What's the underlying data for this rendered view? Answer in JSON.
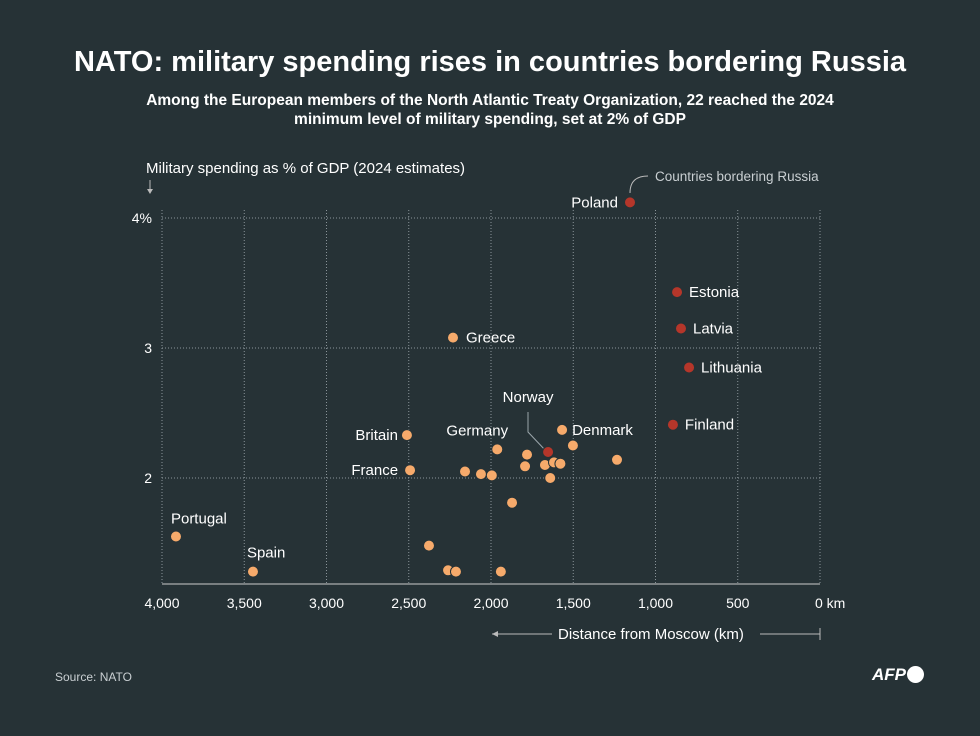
{
  "title": "NATO: military spending rises in countries bordering Russia",
  "subtitle": "Among the European members of the North Atlantic Treaty Organization, 22 reached the 2024 minimum level of military spending, set at 2% of GDP",
  "source": "Source: NATO",
  "logo": "AFP",
  "colors": {
    "background": "#263236",
    "other": "#f6aa6b",
    "bordering": "#b5362a"
  },
  "chart_data": {
    "type": "scatter",
    "ylabel": "Military spending as % of GDP (2024 estimates)",
    "xlabel": "Distance from Moscow (km)",
    "xlim": [
      4000,
      0
    ],
    "ylim": [
      1.18,
      4
    ],
    "x_reversed": true,
    "grid": true,
    "xticks": [
      4000,
      3500,
      3000,
      2500,
      2000,
      1500,
      1000,
      500,
      0
    ],
    "xtick_labels": [
      "4,000",
      "3,500",
      "3,000",
      "2,500",
      "2,000",
      "1,500",
      "1,000",
      "500",
      "0 km"
    ],
    "yticks": [
      4,
      3,
      2
    ],
    "ytick_labels": [
      "4%",
      "3",
      "2"
    ],
    "legend": "Countries bordering Russia",
    "points": [
      {
        "label": "Poland",
        "x": 1155,
        "y": 4.12,
        "bordering": true
      },
      {
        "label": "Estonia",
        "x": 869,
        "y": 3.43,
        "bordering": true
      },
      {
        "label": "Latvia",
        "x": 845,
        "y": 3.15,
        "bordering": true
      },
      {
        "label": "Lithuania",
        "x": 796,
        "y": 2.85,
        "bordering": true
      },
      {
        "label": "Finland",
        "x": 894,
        "y": 2.41,
        "bordering": true
      },
      {
        "label": "Norway",
        "x": 1653,
        "y": 2.2,
        "bordering": true
      },
      {
        "label": "Greece",
        "x": 2231,
        "y": 3.08,
        "bordering": false
      },
      {
        "label": "Britain",
        "x": 2511,
        "y": 2.33,
        "bordering": false
      },
      {
        "label": "France",
        "x": 2492,
        "y": 2.06,
        "bordering": false
      },
      {
        "label": "Germany",
        "x": 1962,
        "y": 2.22,
        "bordering": false
      },
      {
        "label": "Denmark",
        "x": 1568,
        "y": 2.37,
        "bordering": false
      },
      {
        "label": "Portugal",
        "x": 3915,
        "y": 1.55,
        "bordering": false
      },
      {
        "label": "Spain",
        "x": 3447,
        "y": 1.28,
        "bordering": false
      },
      {
        "label": "",
        "x": 1502,
        "y": 2.25,
        "bordering": false
      },
      {
        "label": "",
        "x": 1234,
        "y": 2.14,
        "bordering": false
      },
      {
        "label": "",
        "x": 1781,
        "y": 2.18,
        "bordering": false
      },
      {
        "label": "",
        "x": 1793,
        "y": 2.09,
        "bordering": false
      },
      {
        "label": "",
        "x": 1672,
        "y": 2.1,
        "bordering": false
      },
      {
        "label": "",
        "x": 1617,
        "y": 2.12,
        "bordering": false
      },
      {
        "label": "",
        "x": 1578,
        "y": 2.11,
        "bordering": false
      },
      {
        "label": "",
        "x": 1640,
        "y": 2.0,
        "bordering": false
      },
      {
        "label": "",
        "x": 2158,
        "y": 2.05,
        "bordering": false
      },
      {
        "label": "",
        "x": 2061,
        "y": 2.03,
        "bordering": false
      },
      {
        "label": "",
        "x": 1995,
        "y": 2.02,
        "bordering": false
      },
      {
        "label": "",
        "x": 1872,
        "y": 1.81,
        "bordering": false
      },
      {
        "label": "",
        "x": 2377,
        "y": 1.48,
        "bordering": false
      },
      {
        "label": "",
        "x": 2261,
        "y": 1.29,
        "bordering": false
      },
      {
        "label": "",
        "x": 2213,
        "y": 1.28,
        "bordering": false
      },
      {
        "label": "",
        "x": 1940,
        "y": 1.28,
        "bordering": false
      }
    ]
  }
}
